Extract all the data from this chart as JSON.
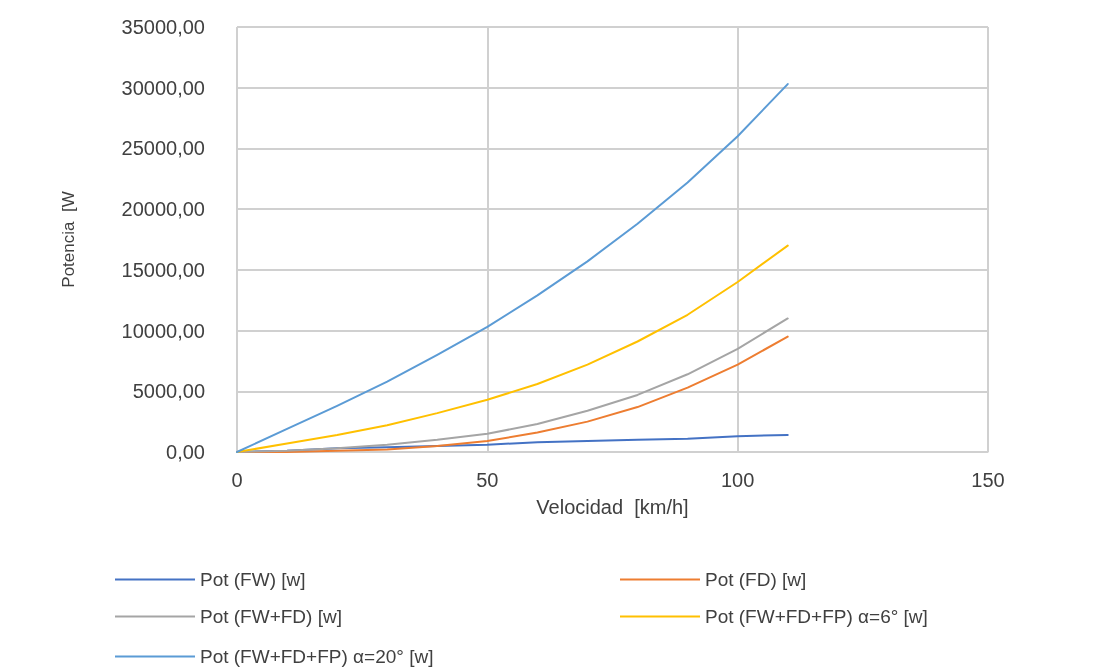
{
  "chart_data": {
    "type": "line",
    "xlabel": "Velocidad  [km/h]",
    "ylabel": "Potencia  [W",
    "x": [
      0,
      10,
      20,
      30,
      40,
      50,
      60,
      70,
      80,
      90,
      100,
      110
    ],
    "xlim": [
      0,
      150
    ],
    "xticks": [
      0,
      50,
      100,
      150
    ],
    "ylim": [
      0,
      35000
    ],
    "yticks": [
      {
        "value": 0,
        "label": "0,00"
      },
      {
        "value": 5000,
        "label": "5000,00"
      },
      {
        "value": 10000,
        "label": "10000,00"
      },
      {
        "value": 15000,
        "label": "15000,00"
      },
      {
        "value": 20000,
        "label": "20000,00"
      },
      {
        "value": 25000,
        "label": "25000,00"
      },
      {
        "value": 30000,
        "label": "30000,00"
      },
      {
        "value": 35000,
        "label": "35000,00"
      }
    ],
    "grid": true,
    "legend": "bottom",
    "marker": "none",
    "line_style": "solid",
    "series": [
      {
        "name": "Pot (FW) [w]",
        "color": "#4472c4",
        "values": [
          0,
          100,
          300,
          400,
          500,
          600,
          800,
          900,
          1000,
          1100,
          1300,
          1400
        ]
      },
      {
        "name": "Pot (FD) [w]",
        "color": "#ed7d31",
        "values": [
          0,
          0,
          100,
          200,
          500,
          900,
          1600,
          2500,
          3700,
          5300,
          7200,
          9500
        ]
      },
      {
        "name": "Pot (FW+FD) [w]",
        "color": "#a5a5a5",
        "values": [
          0,
          100,
          300,
          600,
          1000,
          1500,
          2300,
          3400,
          4700,
          6400,
          8500,
          11000
        ]
      },
      {
        "name": "Pot (FW+FD+FP) α=6° [w]",
        "color": "#ffc000",
        "values": [
          0,
          700,
          1400,
          2200,
          3200,
          4300,
          5600,
          7200,
          9100,
          11300,
          14000,
          17000
        ]
      },
      {
        "name": "Pot (FW+FD+FP) α=20° [w]",
        "color": "#5b9bd5",
        "values": [
          0,
          1900,
          3800,
          5800,
          8000,
          10300,
          12900,
          15700,
          18800,
          22200,
          26000,
          30300
        ]
      }
    ]
  }
}
